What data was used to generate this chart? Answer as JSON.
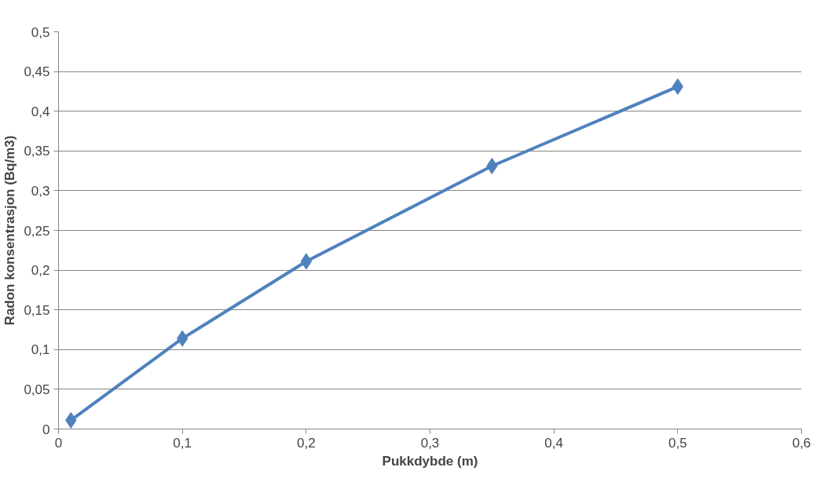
{
  "chart_data": {
    "type": "line",
    "xlabel": "Pukkdybde (m)",
    "ylabel": "Radon konsentrasjon (Bq/m3)",
    "x": [
      0.01,
      0.1,
      0.2,
      0.35,
      0.5
    ],
    "series": [
      {
        "color": "#4f81bd",
        "values": [
          0.011,
          0.114,
          0.211,
          0.331,
          0.431
        ]
      }
    ],
    "xlim": [
      0,
      0.6
    ],
    "xticks": [
      {
        "value": 0,
        "label": "0"
      },
      {
        "value": 0.1,
        "label": "0,1"
      },
      {
        "value": 0.2,
        "label": "0,2"
      },
      {
        "value": 0.3,
        "label": "0,3"
      },
      {
        "value": 0.4,
        "label": "0,4"
      },
      {
        "value": 0.5,
        "label": "0,5"
      },
      {
        "value": 0.6,
        "label": "0,6"
      }
    ],
    "ylim": [
      0,
      0.5
    ],
    "yticks": [
      {
        "value": 0,
        "label": "0"
      },
      {
        "value": 0.05,
        "label": "0,05"
      },
      {
        "value": 0.1,
        "label": "0,1"
      },
      {
        "value": 0.15,
        "label": "0,15"
      },
      {
        "value": 0.2,
        "label": "0,2"
      },
      {
        "value": 0.25,
        "label": "0,25"
      },
      {
        "value": 0.3,
        "label": "0,3"
      },
      {
        "value": 0.35,
        "label": "0,35"
      },
      {
        "value": 0.4,
        "label": "0,4"
      },
      {
        "value": 0.45,
        "label": "0,45"
      },
      {
        "value": 0.5,
        "label": "0,5"
      }
    ],
    "grid": "y",
    "marker": "diamond",
    "line_style": "solid"
  }
}
